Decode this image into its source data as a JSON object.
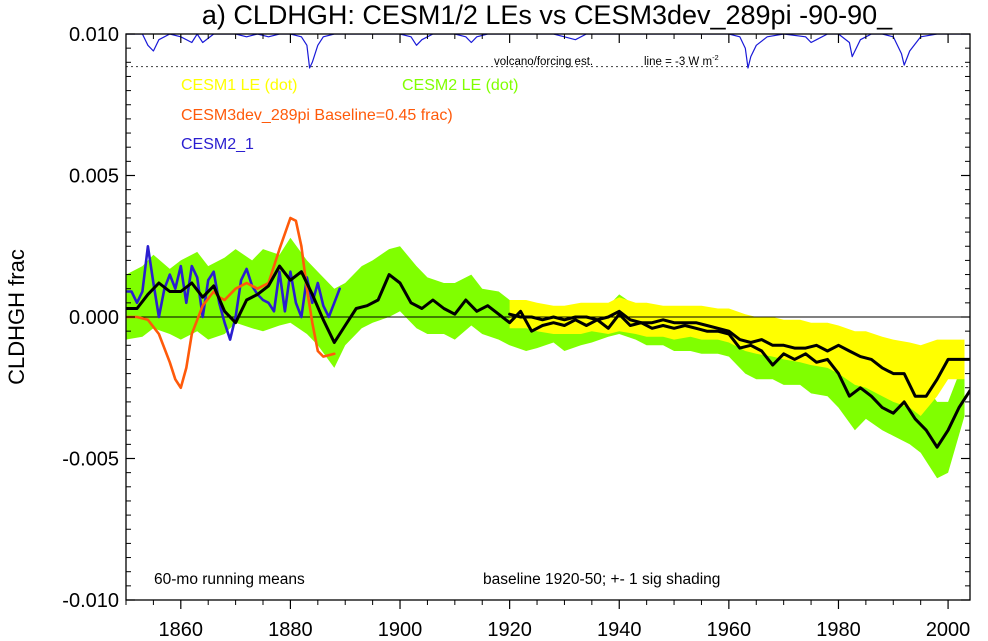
{
  "chart_data": {
    "type": "line",
    "title": "a) CLDHGH: CESM1/2 LEs vs CESM3dev_289pi -90-90_",
    "ylabel": "CLDHGH frac",
    "xlabel": "",
    "xlim": [
      1850,
      2004
    ],
    "ylim": [
      -0.01,
      0.01
    ],
    "x_ticks": [
      1860,
      1880,
      1900,
      1920,
      1940,
      1960,
      1980,
      2000
    ],
    "x_tick_labels": [
      "1860",
      "1880",
      "1900",
      "1920",
      "1940",
      "1960",
      "1980",
      "2000"
    ],
    "y_ticks": [
      0.01,
      0.005,
      0.0,
      -0.005,
      -0.01
    ],
    "y_tick_labels": [
      "0.010",
      "0.005",
      "0.000",
      "-0.005",
      "-0.010"
    ],
    "zero_line": true,
    "legend": [
      {
        "label": "CESM1 LE (dot)",
        "color": "#ffff00"
      },
      {
        "label": "CESM2 LE (dot)",
        "color": "#80ff00"
      },
      {
        "label": "CESM3dev_289pi Baseline=0.45 frac)",
        "color": "#ff5a0a"
      },
      {
        "label": "CESM2_1",
        "color": "#2a1ed0"
      }
    ],
    "annotations": {
      "volcano": "volcano/forcing est.",
      "forcing_line": "line = -3 W m",
      "forcing_sup": "-2",
      "running_mean": "60-mo running means",
      "baseline": "baseline 1920-50; +- 1 sig shading"
    },
    "colors": {
      "cesm1_band": "#ffff00",
      "cesm2_band": "#80ff00",
      "cesm3": "#ff5a0a",
      "cesm2_1": "#2a1ed0",
      "mean_line": "#000000",
      "volcano_line": "#1a1ad8"
    },
    "series": [
      {
        "name": "CESM2 LE (dot)",
        "kind": "band",
        "x": [
          1850,
          1853,
          1855,
          1858,
          1860,
          1863,
          1865,
          1868,
          1870,
          1873,
          1875,
          1878,
          1880,
          1883,
          1885,
          1888,
          1890,
          1893,
          1895,
          1898,
          1900,
          1903,
          1905,
          1908,
          1910,
          1913,
          1915,
          1918,
          1920,
          1923,
          1925,
          1928,
          1930,
          1933,
          1935,
          1938,
          1940,
          1943,
          1945,
          1948,
          1950,
          1953,
          1955,
          1958,
          1960,
          1963,
          1965,
          1968,
          1970,
          1973,
          1975,
          1978,
          1980,
          1983,
          1985,
          1988,
          1990,
          1993,
          1995,
          1998,
          2000,
          2003
        ],
        "upper": [
          0.0015,
          0.0018,
          0.0022,
          0.0017,
          0.002,
          0.0023,
          0.0018,
          0.0021,
          0.0024,
          0.002,
          0.0024,
          0.0022,
          0.0028,
          0.002,
          0.0016,
          0.001,
          0.0012,
          0.0018,
          0.002,
          0.0024,
          0.0025,
          0.0018,
          0.0014,
          0.0012,
          0.0012,
          0.0015,
          0.001,
          0.0009,
          0.0006,
          0.0003,
          0.0004,
          0.0002,
          0.0001,
          0.0002,
          0.0003,
          0.0004,
          0.0008,
          0.0004,
          0.0002,
          0.0001,
          0.0001,
          0.0002,
          0.0002,
          0.0001,
          0.0001,
          -0.0003,
          -0.0005,
          -0.0004,
          -0.0006,
          -0.0007,
          -0.0008,
          -0.0008,
          -0.0012,
          -0.0015,
          -0.0014,
          -0.0018,
          -0.002,
          -0.0022,
          -0.0022,
          -0.003,
          -0.003,
          -0.0015
        ],
        "lower": [
          -0.0008,
          -0.0007,
          -0.0004,
          -0.0006,
          -0.0008,
          -0.0005,
          -0.0008,
          -0.0006,
          -0.0002,
          -0.0004,
          -0.0005,
          -0.0003,
          -0.0002,
          -0.0006,
          -0.001,
          -0.0018,
          -0.001,
          -0.0004,
          -0.0002,
          0.0,
          0.0002,
          -0.0004,
          -0.0006,
          -0.0006,
          -0.0008,
          -0.0003,
          -0.0006,
          -0.0008,
          -0.001,
          -0.0012,
          -0.0011,
          -0.0009,
          -0.0012,
          -0.001,
          -0.0009,
          -0.0007,
          -0.0006,
          -0.0008,
          -0.001,
          -0.001,
          -0.0012,
          -0.0012,
          -0.0013,
          -0.0013,
          -0.0014,
          -0.002,
          -0.0022,
          -0.0022,
          -0.0024,
          -0.0024,
          -0.0027,
          -0.0028,
          -0.0032,
          -0.004,
          -0.0036,
          -0.004,
          -0.0042,
          -0.0045,
          -0.0048,
          -0.0057,
          -0.0055,
          -0.0035
        ]
      },
      {
        "name": "CESM1 LE (dot)",
        "kind": "band",
        "x": [
          1920,
          1923,
          1925,
          1928,
          1930,
          1933,
          1935,
          1938,
          1940,
          1943,
          1945,
          1948,
          1950,
          1953,
          1955,
          1958,
          1960,
          1963,
          1965,
          1968,
          1970,
          1973,
          1975,
          1978,
          1980,
          1983,
          1985,
          1988,
          1990,
          1993,
          1995,
          1998,
          2000,
          2003
        ],
        "upper": [
          0.0006,
          0.0006,
          0.0005,
          0.0004,
          0.0004,
          0.0005,
          0.0005,
          0.0005,
          0.0007,
          0.0005,
          0.0005,
          0.0004,
          0.0004,
          0.0004,
          0.0004,
          0.0003,
          0.0003,
          0.0001,
          0.0,
          0.0,
          -0.0001,
          -0.0001,
          -0.0002,
          -0.0002,
          -0.0003,
          -0.0005,
          -0.0005,
          -0.0007,
          -0.0008,
          -0.0009,
          -0.001,
          -0.0008,
          -0.0008,
          -0.0008
        ],
        "lower": [
          -0.0004,
          -0.0004,
          -0.0005,
          -0.0006,
          -0.0006,
          -0.0006,
          -0.0005,
          -0.0006,
          -0.0005,
          -0.0006,
          -0.0007,
          -0.0007,
          -0.0008,
          -0.0007,
          -0.0008,
          -0.0008,
          -0.0009,
          -0.0012,
          -0.0013,
          -0.0014,
          -0.0015,
          -0.0016,
          -0.0017,
          -0.0018,
          -0.002,
          -0.0024,
          -0.0025,
          -0.0028,
          -0.003,
          -0.0032,
          -0.0035,
          -0.0028,
          -0.0022,
          -0.0022
        ]
      },
      {
        "name": "CESM2 LE mean",
        "kind": "line",
        "x": [
          1850,
          1852,
          1854,
          1856,
          1858,
          1860,
          1862,
          1864,
          1866,
          1868,
          1870,
          1872,
          1874,
          1876,
          1878,
          1880,
          1882,
          1884,
          1886,
          1888,
          1890,
          1892,
          1894,
          1896,
          1898,
          1900,
          1902,
          1904,
          1906,
          1908,
          1910,
          1912,
          1914,
          1916,
          1918,
          1920,
          1922,
          1924,
          1926,
          1928,
          1930,
          1932,
          1934,
          1936,
          1938,
          1940,
          1942,
          1944,
          1946,
          1948,
          1950,
          1952,
          1954,
          1956,
          1958,
          1960,
          1962,
          1964,
          1966,
          1968,
          1970,
          1972,
          1974,
          1976,
          1978,
          1980,
          1982,
          1984,
          1986,
          1988,
          1990,
          1992,
          1994,
          1996,
          1998,
          2000,
          2002,
          2004
        ],
        "y": [
          0.0003,
          0.0003,
          0.0008,
          0.0012,
          0.0009,
          0.0009,
          0.0012,
          0.0007,
          0.0011,
          0.0002,
          -0.0002,
          0.0006,
          0.0008,
          0.0011,
          0.0018,
          0.0013,
          0.0016,
          0.0008,
          -0.0001,
          -0.0009,
          -0.0003,
          0.0003,
          0.0004,
          0.0006,
          0.0015,
          0.0012,
          0.0005,
          0.0003,
          0.0006,
          0.0003,
          0.0001,
          0.0006,
          0.0002,
          0.0004,
          0.0001,
          -0.0002,
          0.0002,
          -0.0005,
          -0.0003,
          -0.0002,
          -0.0003,
          -0.0001,
          -0.0003,
          -0.0001,
          -0.0004,
          0.0001,
          -0.0003,
          -0.0002,
          -0.0004,
          -0.0003,
          -0.0004,
          -0.0003,
          -0.0004,
          -0.0005,
          -0.0005,
          -0.0006,
          -0.0011,
          -0.001,
          -0.0012,
          -0.0017,
          -0.0013,
          -0.0015,
          -0.0013,
          -0.0016,
          -0.0015,
          -0.002,
          -0.0028,
          -0.0025,
          -0.0028,
          -0.0032,
          -0.0034,
          -0.003,
          -0.0036,
          -0.004,
          -0.0046,
          -0.004,
          -0.0032,
          -0.0026
        ]
      },
      {
        "name": "CESM1 LE mean",
        "kind": "line",
        "x": [
          1920,
          1922,
          1924,
          1926,
          1928,
          1930,
          1932,
          1934,
          1936,
          1938,
          1940,
          1942,
          1944,
          1946,
          1948,
          1950,
          1952,
          1954,
          1956,
          1958,
          1960,
          1962,
          1964,
          1966,
          1968,
          1970,
          1972,
          1974,
          1976,
          1978,
          1980,
          1982,
          1984,
          1986,
          1988,
          1990,
          1992,
          1994,
          1996,
          1998,
          2000,
          2002,
          2004
        ],
        "y": [
          0.0001,
          0.0,
          0.0,
          -0.0001,
          0.0,
          -0.0001,
          0.0,
          0.0,
          -0.0001,
          0.0,
          0.0002,
          -0.0001,
          -0.0002,
          -0.0002,
          -0.0001,
          -0.0002,
          -0.0002,
          -0.0002,
          -0.0003,
          -0.0004,
          -0.0005,
          -0.0008,
          -0.0009,
          -0.0008,
          -0.001,
          -0.001,
          -0.0011,
          -0.0011,
          -0.001,
          -0.0012,
          -0.001,
          -0.0012,
          -0.0014,
          -0.0015,
          -0.0018,
          -0.002,
          -0.002,
          -0.0028,
          -0.0028,
          -0.0022,
          -0.0015,
          -0.0015,
          -0.0015
        ]
      },
      {
        "name": "CESM3dev_289pi Baseline=0.45 frac)",
        "kind": "line",
        "x": [
          1850,
          1852,
          1854,
          1856,
          1858,
          1859,
          1860,
          1861,
          1862,
          1864,
          1866,
          1867,
          1868,
          1870,
          1872,
          1874,
          1876,
          1878,
          1880,
          1881,
          1882,
          1883,
          1884,
          1885,
          1886,
          1888
        ],
        "y": [
          0.0,
          0.0,
          -0.0001,
          -0.0006,
          -0.0016,
          -0.0022,
          -0.0025,
          -0.0018,
          -0.0006,
          0.0004,
          0.0009,
          0.0007,
          0.0006,
          0.001,
          0.0012,
          0.001,
          0.0012,
          0.0024,
          0.0035,
          0.0034,
          0.0025,
          0.001,
          -0.0002,
          -0.0012,
          -0.0014,
          -0.0013
        ]
      },
      {
        "name": "CESM2_1",
        "kind": "line",
        "x": [
          1850,
          1851,
          1852,
          1853,
          1854,
          1855,
          1856,
          1857,
          1858,
          1859,
          1860,
          1861,
          1862,
          1863,
          1864,
          1865,
          1866,
          1867,
          1868,
          1869,
          1870,
          1871,
          1872,
          1873,
          1874,
          1875,
          1876,
          1877,
          1878,
          1879,
          1880,
          1881,
          1882,
          1883,
          1884,
          1885,
          1886,
          1887,
          1888,
          1889
        ],
        "y": [
          0.0009,
          0.0009,
          0.0005,
          0.0009,
          0.0025,
          0.0012,
          0.0,
          0.001,
          0.0015,
          0.001,
          0.0018,
          0.0005,
          0.0018,
          0.0014,
          0.0,
          0.0013,
          0.0016,
          0.0005,
          -0.0002,
          -0.0008,
          0.0,
          0.0013,
          0.0017,
          0.0011,
          0.0008,
          0.0006,
          0.0005,
          0.0002,
          0.0016,
          0.0002,
          0.0016,
          0.0005,
          0.0,
          0.0014,
          0.0005,
          0.0012,
          0.0004,
          0.0,
          0.0005,
          0.001
        ]
      },
      {
        "name": "volcano/forcing est.",
        "kind": "volcano",
        "x": [
          1850,
          1853,
          1854,
          1855,
          1856,
          1858,
          1860,
          1862,
          1863,
          1864,
          1866,
          1868,
          1870,
          1872,
          1874,
          1876,
          1878,
          1880,
          1882,
          1883,
          1883.5,
          1884,
          1885,
          1886,
          1888,
          1890,
          1892,
          1894,
          1896,
          1900,
          1902,
          1903,
          1904,
          1906,
          1910,
          1912,
          1913,
          1914,
          1916,
          1920,
          1924,
          1928,
          1930,
          1932,
          1934,
          1940,
          1950,
          1955,
          1958,
          1960,
          1962,
          1963,
          1963.5,
          1964,
          1965,
          1967,
          1970,
          1974,
          1975,
          1976,
          1978,
          1980,
          1982,
          1982.5,
          1983,
          1984,
          1986,
          1988,
          1990,
          1991.5,
          1992,
          1993,
          1995,
          1998,
          2000,
          2004
        ],
        "y": [
          0.01,
          0.01,
          0.0096,
          0.0094,
          0.0098,
          0.01,
          0.0099,
          0.0097,
          0.01,
          0.0097,
          0.01,
          0.01,
          0.01,
          0.0099,
          0.01,
          0.0099,
          0.01,
          0.01,
          0.0099,
          0.0096,
          0.0088,
          0.009,
          0.0096,
          0.0099,
          0.01,
          0.01,
          0.01,
          0.01,
          0.01,
          0.01,
          0.0099,
          0.0096,
          0.0098,
          0.01,
          0.01,
          0.0099,
          0.0097,
          0.0099,
          0.01,
          0.01,
          0.01,
          0.01,
          0.0099,
          0.0098,
          0.01,
          0.01,
          0.01,
          0.01,
          0.01,
          0.01,
          0.0099,
          0.0095,
          0.0088,
          0.0092,
          0.0096,
          0.0099,
          0.01,
          0.0099,
          0.0097,
          0.0098,
          0.01,
          0.01,
          0.0097,
          0.0092,
          0.0094,
          0.0098,
          0.01,
          0.01,
          0.0099,
          0.0093,
          0.0089,
          0.0094,
          0.0099,
          0.01,
          0.01,
          0.01
        ]
      }
    ],
    "forcing_ref_y": 0.00885
  }
}
